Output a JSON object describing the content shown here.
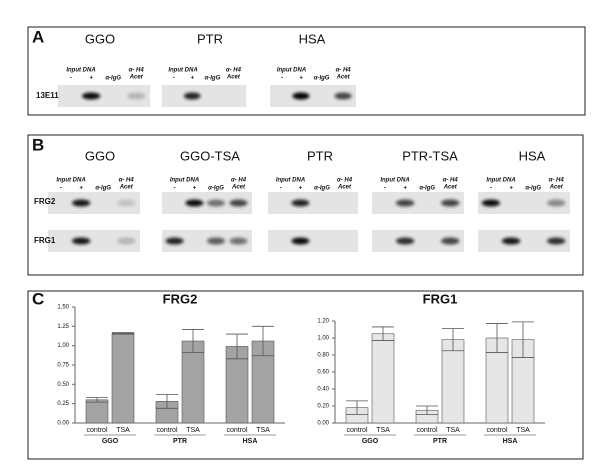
{
  "panel_a": {
    "letter": "A",
    "species": [
      "GGO",
      "PTR",
      "HSA"
    ],
    "rows": [
      "13E11"
    ]
  },
  "panel_b": {
    "letter": "B",
    "species": [
      "GGO",
      "GGO-TSA",
      "PTR",
      "PTR-TSA",
      "HSA"
    ],
    "rows": [
      "FRG2",
      "FRG1"
    ]
  },
  "lane_labels": {
    "input_dna": "Input DNA",
    "minus": "-",
    "plus": "+",
    "igg": "α-IgG",
    "h4": "α- H4",
    "acet": "Acet"
  },
  "panel_c": {
    "letter": "C"
  },
  "chart_data": [
    {
      "type": "bar",
      "title": "FRG2",
      "color": "#a3a3a3",
      "categories": [
        "control",
        "TSA",
        "control",
        "TSA",
        "control",
        "TSA"
      ],
      "groups": [
        "GGO",
        "PTR",
        "HSA"
      ],
      "values": [
        0.3,
        1.16,
        0.28,
        1.06,
        0.99,
        1.06
      ],
      "errors": [
        0.03,
        0.01,
        0.09,
        0.15,
        0.16,
        0.19
      ],
      "ylim": [
        0,
        1.5
      ],
      "yticks": [
        {
          "value": 0,
          "label": "0.00"
        },
        {
          "value": 0.25,
          "label": "0.25"
        },
        {
          "value": 0.5,
          "label": "0.50"
        },
        {
          "value": 0.75,
          "label": "0.75"
        },
        {
          "value": 1,
          "label": "1.00"
        },
        {
          "value": 1.25,
          "label": "1.25"
        },
        {
          "value": 1.5,
          "label": "1.50"
        }
      ]
    },
    {
      "type": "bar",
      "title": "FRG1",
      "color": "#e6e6e6",
      "categories": [
        "control",
        "TSA",
        "control",
        "TSA",
        "control",
        "TSA"
      ],
      "groups": [
        "GGO",
        "PTR",
        "HSA"
      ],
      "values": [
        0.18,
        1.05,
        0.15,
        0.98,
        1.0,
        0.98
      ],
      "errors": [
        0.08,
        0.08,
        0.05,
        0.13,
        0.17,
        0.21
      ],
      "ylim": [
        0,
        1.2
      ],
      "yticks": [
        {
          "value": 0,
          "label": "0.00"
        },
        {
          "value": 0.2,
          "label": "0.20"
        },
        {
          "value": 0.4,
          "label": "0.40"
        },
        {
          "value": 0.6,
          "label": "0.60"
        },
        {
          "value": 0.8,
          "label": "0.80"
        },
        {
          "value": 1,
          "label": "1.00"
        },
        {
          "value": 1.2,
          "label": "1.20"
        }
      ]
    }
  ]
}
